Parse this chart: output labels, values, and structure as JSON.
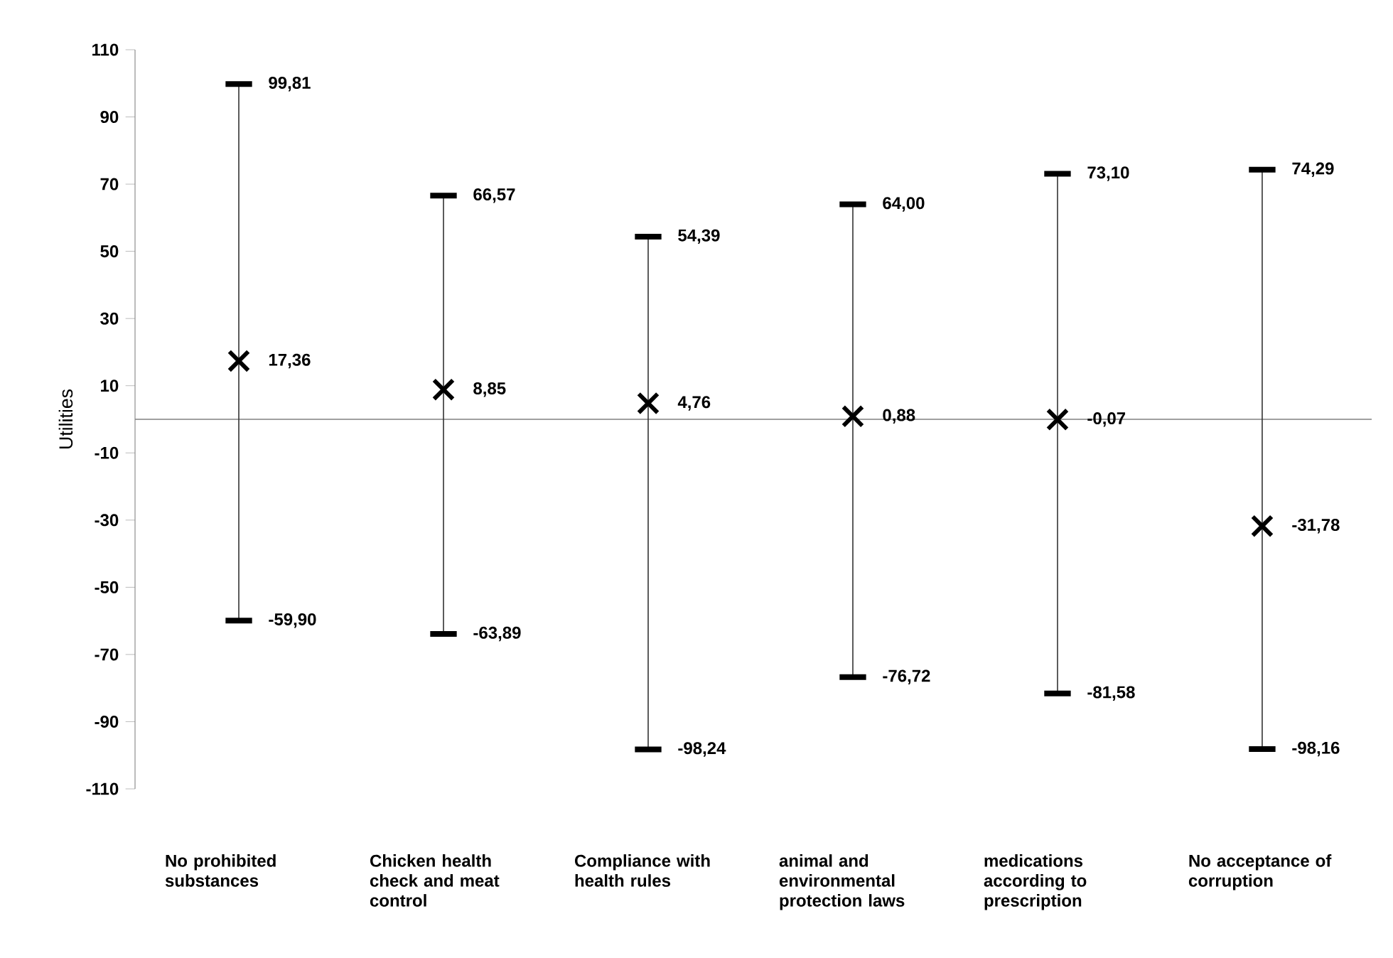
{
  "chart_data": {
    "type": "scatter",
    "ylabel": "Utilities",
    "categories": [
      "No prohibited substances",
      "Chicken health check and meat control",
      "Compliance with health rules",
      "animal and environmental protection laws",
      "medications according to prescription",
      "No acceptance of corruption"
    ],
    "values": [
      17.36,
      8.85,
      4.76,
      0.88,
      -0.07,
      -31.78
    ],
    "value_labels": [
      "17,36",
      "8,85",
      "4,76",
      "0,88",
      "-0,07",
      "-31,78"
    ],
    "errors": [
      [
        -59.9,
        99.81
      ],
      [
        -63.89,
        66.57
      ],
      [
        -98.24,
        54.39
      ],
      [
        -76.72,
        64.0
      ],
      [
        -81.58,
        73.1
      ],
      [
        -98.16,
        74.29
      ]
    ],
    "annotations": [
      {
        "text": "99,81",
        "x": "No prohibited substances",
        "y": 99.81
      },
      {
        "text": "-59,90",
        "x": "No prohibited substances",
        "y": -59.9
      },
      {
        "text": "66,57",
        "x": "Chicken health check and meat control",
        "y": 66.57
      },
      {
        "text": "-63,89",
        "x": "Chicken health check and meat control",
        "y": -63.89
      },
      {
        "text": "54,39",
        "x": "Compliance with health rules",
        "y": 54.39
      },
      {
        "text": "-98,24",
        "x": "Compliance with health rules",
        "y": -98.24
      },
      {
        "text": "64,00",
        "x": "animal and environmental protection laws",
        "y": 64.0
      },
      {
        "text": "-76,72",
        "x": "animal and environmental protection laws",
        "y": -76.72
      },
      {
        "text": "73,10",
        "x": "medications according to prescription",
        "y": 73.1
      },
      {
        "text": "-81,58",
        "x": "medications according to prescription",
        "y": -81.58
      },
      {
        "text": "74,29",
        "x": "No acceptance of corruption",
        "y": 74.29
      },
      {
        "text": "-98,16",
        "x": "No acceptance of corruption",
        "y": -98.16
      }
    ],
    "color": "#000000",
    "marker": "cross",
    "ylim": [
      -110,
      110
    ],
    "yticks": [
      -110,
      -90,
      -70,
      -50,
      -30,
      -10,
      10,
      30,
      50,
      70,
      90,
      110
    ],
    "ref_lines": [
      {
        "axis": "y",
        "value": 0,
        "color": "#808080"
      }
    ]
  }
}
